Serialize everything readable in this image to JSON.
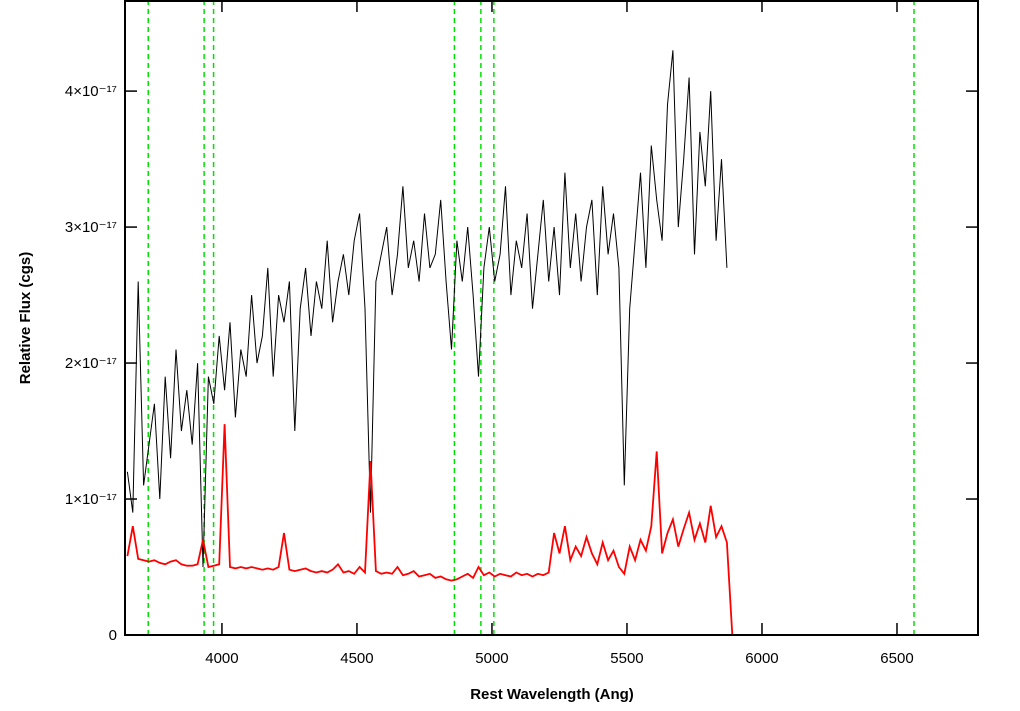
{
  "chart_data": {
    "type": "line",
    "xlabel": "Rest Wavelength (Ang)",
    "ylabel": "Relative Flux (cgs)",
    "xlim": [
      3641,
      6800
    ],
    "ylim": [
      0,
      4.67e-17
    ],
    "xticks": [
      4000,
      4500,
      5000,
      5500,
      6000,
      6500
    ],
    "yticks": [
      0,
      {
        "value": 1e-17,
        "label": "1×10⁻¹⁷"
      },
      {
        "value": 2e-17,
        "label": "2×10⁻¹⁷"
      },
      {
        "value": 3e-17,
        "label": "3×10⁻¹⁷"
      },
      {
        "value": 4e-17,
        "label": "4×10⁻¹⁷"
      }
    ],
    "reference_lines": {
      "color": "#00e000",
      "style": "dashed",
      "x": [
        3727,
        3934,
        3969,
        4861,
        4959,
        5007,
        6563
      ]
    },
    "x": [
      3650,
      3670,
      3690,
      3710,
      3730,
      3750,
      3770,
      3790,
      3810,
      3830,
      3850,
      3870,
      3890,
      3910,
      3930,
      3950,
      3970,
      3990,
      4010,
      4030,
      4050,
      4070,
      4090,
      4110,
      4130,
      4150,
      4170,
      4190,
      4210,
      4230,
      4250,
      4270,
      4290,
      4310,
      4330,
      4350,
      4370,
      4390,
      4410,
      4430,
      4450,
      4470,
      4490,
      4510,
      4530,
      4550,
      4570,
      4590,
      4610,
      4630,
      4650,
      4670,
      4690,
      4710,
      4730,
      4750,
      4770,
      4790,
      4810,
      4830,
      4850,
      4870,
      4890,
      4910,
      4930,
      4950,
      4970,
      4990,
      5010,
      5030,
      5050,
      5070,
      5090,
      5110,
      5130,
      5150,
      5170,
      5190,
      5210,
      5230,
      5250,
      5270,
      5290,
      5310,
      5330,
      5350,
      5370,
      5390,
      5410,
      5430,
      5450,
      5470,
      5490,
      5510,
      5530,
      5550,
      5570,
      5590,
      5610,
      5630,
      5650,
      5670,
      5690,
      5710,
      5730,
      5750,
      5770,
      5790,
      5810,
      5830,
      5850,
      5870,
      5890,
      6800
    ],
    "series": [
      {
        "color": "#000000",
        "values": [
          1.2e-17,
          9e-18,
          2.6e-17,
          1.1e-17,
          1.4e-17,
          1.7e-17,
          1e-17,
          1.9e-17,
          1.3e-17,
          2.1e-17,
          1.5e-17,
          1.8e-17,
          1.4e-17,
          2e-17,
          5e-18,
          1.9e-17,
          1.7e-17,
          2.2e-17,
          1.8e-17,
          2.3e-17,
          1.6e-17,
          2.1e-17,
          1.9e-17,
          2.5e-17,
          2e-17,
          2.2e-17,
          2.7e-17,
          1.9e-17,
          2.5e-17,
          2.3e-17,
          2.6e-17,
          1.5e-17,
          2.4e-17,
          2.7e-17,
          2.2e-17,
          2.6e-17,
          2.4e-17,
          2.9e-17,
          2.3e-17,
          2.6e-17,
          2.8e-17,
          2.5e-17,
          2.9e-17,
          3.1e-17,
          2.4e-17,
          9e-18,
          2.6e-17,
          2.8e-17,
          3e-17,
          2.5e-17,
          2.8e-17,
          3.3e-17,
          2.7e-17,
          2.9e-17,
          2.6e-17,
          3.1e-17,
          2.7e-17,
          2.8e-17,
          3.2e-17,
          2.6e-17,
          2.1e-17,
          2.9e-17,
          2.6e-17,
          3e-17,
          2.5e-17,
          1.9e-17,
          2.7e-17,
          3e-17,
          2.6e-17,
          2.8e-17,
          3.3e-17,
          2.5e-17,
          2.9e-17,
          2.7e-17,
          3.1e-17,
          2.4e-17,
          2.8e-17,
          3.2e-17,
          2.6e-17,
          3e-17,
          2.5e-17,
          3.4e-17,
          2.7e-17,
          3.1e-17,
          2.6e-17,
          3e-17,
          3.2e-17,
          2.5e-17,
          3.3e-17,
          2.8e-17,
          3.1e-17,
          2.7e-17,
          1.1e-17,
          2.4e-17,
          2.9e-17,
          3.4e-17,
          2.7e-17,
          3.6e-17,
          3.2e-17,
          2.9e-17,
          3.9e-17,
          4.3e-17,
          3e-17,
          3.5e-17,
          4.1e-17,
          2.8e-17,
          3.7e-17,
          3.3e-17,
          4e-17,
          2.9e-17,
          3.5e-17,
          2.7e-17,
          null,
          null
        ]
      },
      {
        "color": "#ff0000",
        "values": [
          5.8e-18,
          8e-18,
          5.6e-18,
          5.5e-18,
          5.4e-18,
          5.5e-18,
          5.3e-18,
          5.2e-18,
          5.4e-18,
          5.5e-18,
          5.2e-18,
          5.1e-18,
          5.1e-18,
          5.2e-18,
          7e-18,
          5e-18,
          5.1e-18,
          5.2e-18,
          1.55e-17,
          5e-18,
          4.9e-18,
          5e-18,
          4.9e-18,
          5e-18,
          4.9e-18,
          4.8e-18,
          4.9e-18,
          4.8e-18,
          5e-18,
          7.5e-18,
          4.8e-18,
          4.7e-18,
          4.8e-18,
          4.9e-18,
          4.7e-18,
          4.6e-18,
          4.7e-18,
          4.6e-18,
          4.8e-18,
          5.2e-18,
          4.6e-18,
          4.7e-18,
          4.5e-18,
          5e-18,
          4.6e-18,
          1.28e-17,
          4.7e-18,
          4.5e-18,
          4.6e-18,
          4.5e-18,
          5e-18,
          4.4e-18,
          4.5e-18,
          4.7e-18,
          4.3e-18,
          4.4e-18,
          4.5e-18,
          4.2e-18,
          4.3e-18,
          4.1e-18,
          4e-18,
          4.1e-18,
          4.3e-18,
          4.5e-18,
          4.2e-18,
          5e-18,
          4.4e-18,
          4.6e-18,
          4.3e-18,
          4.5e-18,
          4.4e-18,
          4.3e-18,
          4.6e-18,
          4.4e-18,
          4.5e-18,
          4.3e-18,
          4.5e-18,
          4.4e-18,
          4.6e-18,
          7.5e-18,
          6e-18,
          8e-18,
          5.5e-18,
          6.5e-18,
          5.8e-18,
          7.2e-18,
          6e-18,
          5.2e-18,
          6.8e-18,
          5.5e-18,
          6.2e-18,
          5e-18,
          4.5e-18,
          6.5e-18,
          5.5e-18,
          7e-18,
          6.2e-18,
          8e-18,
          1.35e-17,
          6e-18,
          7.5e-18,
          8.5e-18,
          6.5e-18,
          7.8e-18,
          9e-18,
          7e-18,
          8.2e-18,
          6.8e-18,
          9.5e-18,
          7.2e-18,
          8e-18,
          6.8e-18,
          0,
          0
        ]
      }
    ]
  }
}
